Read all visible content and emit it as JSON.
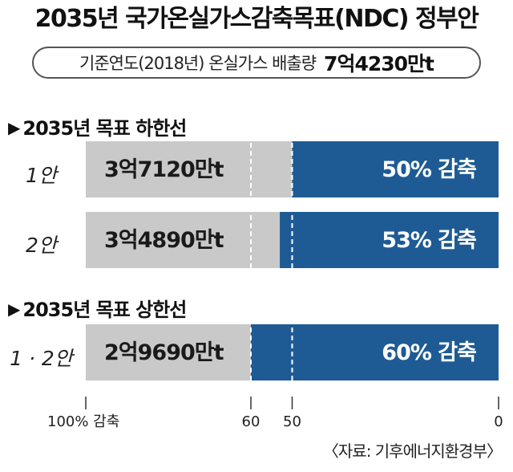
{
  "title": "2035년 국가온실가스감축목표(NDC) 정부안",
  "baseline": {
    "label": "기준연도(2018년) 온실가스 배출량",
    "value": "7억4230만t"
  },
  "sections": [
    {
      "label": "2035년 목표 하한선"
    },
    {
      "label": "2035년 목표 상한선"
    }
  ],
  "source": "〈자료: 기후에너지환경부〉",
  "chart_data": {
    "type": "bar",
    "orientation": "horizontal",
    "categories": [
      "1안",
      "2안",
      "1 · 2안"
    ],
    "series": [
      {
        "values": [
          50,
          53,
          60
        ]
      }
    ],
    "emissions_labels": [
      "3억7120만t",
      "3억4890만t",
      "2억9690만t"
    ],
    "reduction_labels": [
      "50% 감축",
      "53% 감축",
      "60% 감축"
    ],
    "xaxis": {
      "ticks": [
        100,
        60,
        50,
        0
      ],
      "tick_labels": [
        "100% 감축",
        "60",
        "50",
        "0"
      ],
      "reversed": true,
      "range": [
        100,
        0
      ]
    },
    "reference_lines": [
      60,
      50
    ],
    "colors": {
      "remaining": "#c9c9c9",
      "reduction": "#1e5b94",
      "remaining_text": "#1a1a1a",
      "reduction_text": "#ffffff"
    }
  }
}
